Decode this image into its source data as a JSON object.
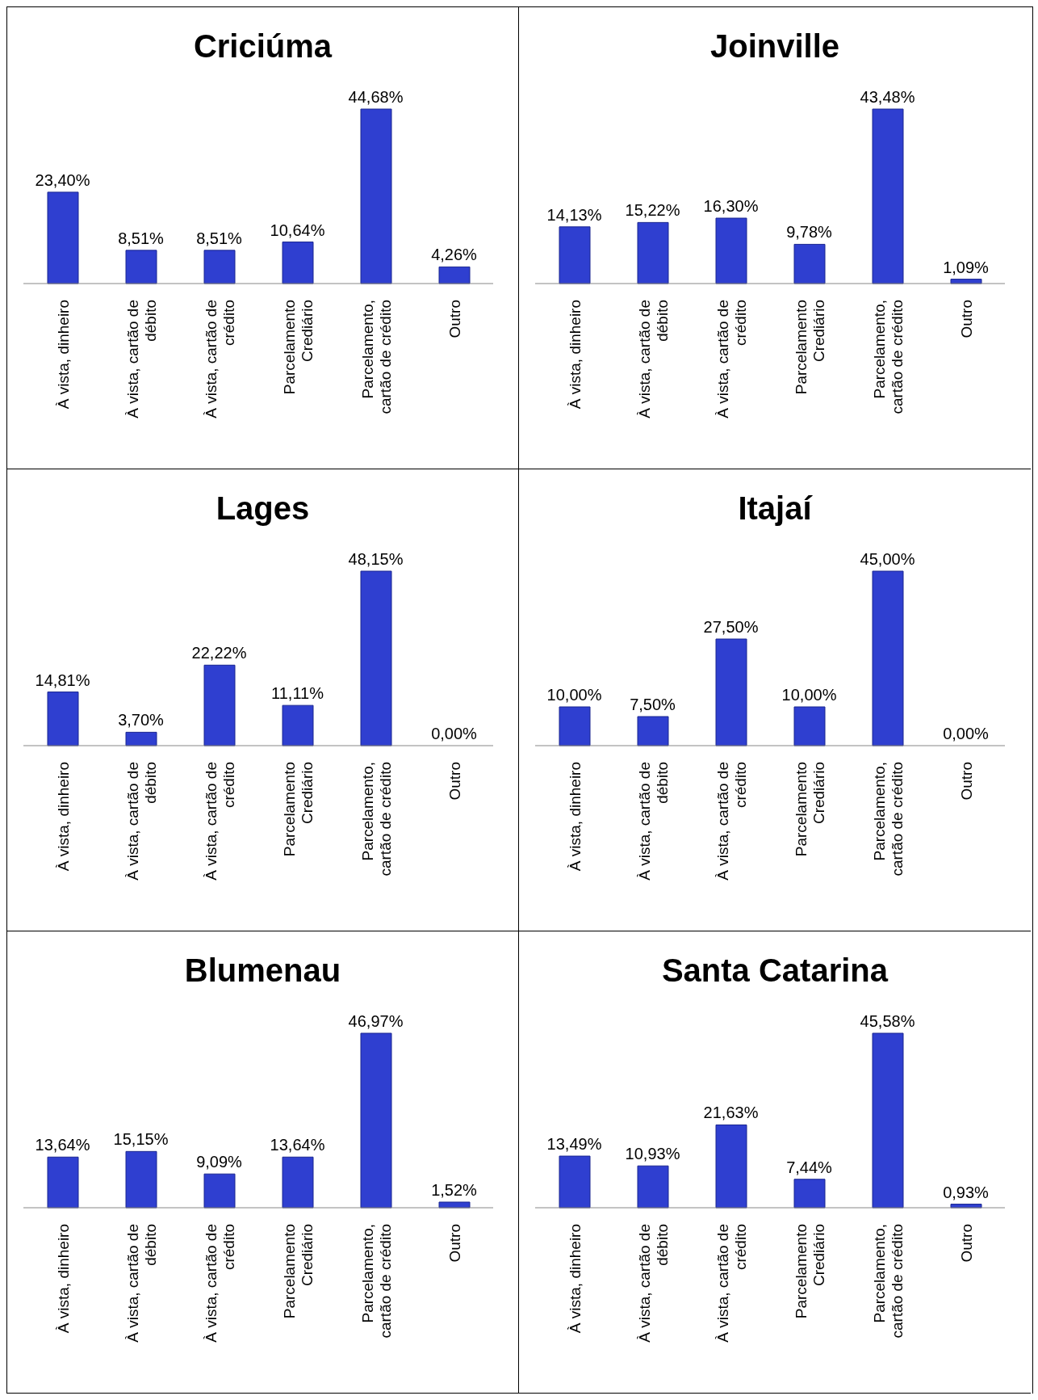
{
  "chart_data": [
    {
      "type": "bar",
      "title": "Criciúma",
      "categories": [
        "À vista, dinheiro",
        "À vista, cartão de débito",
        "À vista, cartão de crédito",
        "Parcelamento Crediário",
        "Parcelamento, cartão de crédito",
        "Outro"
      ],
      "values": [
        23.4,
        8.51,
        8.51,
        10.64,
        44.68,
        4.26
      ],
      "value_labels": [
        "23,40%",
        "8,51%",
        "8,51%",
        "10,64%",
        "44,68%",
        "4,26%"
      ],
      "color": "#2f3fd0"
    },
    {
      "type": "bar",
      "title": "Joinville",
      "categories": [
        "À vista, dinheiro",
        "À vista, cartão de débito",
        "À vista, cartão de crédito",
        "Parcelamento Crediário",
        "Parcelamento, cartão de crédito",
        "Outro"
      ],
      "values": [
        14.13,
        15.22,
        16.3,
        9.78,
        43.48,
        1.09
      ],
      "value_labels": [
        "14,13%",
        "15,22%",
        "16,30%",
        "9,78%",
        "43,48%",
        "1,09%"
      ],
      "color": "#2f3fd0"
    },
    {
      "type": "bar",
      "title": "Lages",
      "categories": [
        "À vista, dinheiro",
        "À vista, cartão de débito",
        "À vista, cartão de crédito",
        "Parcelamento Crediário",
        "Parcelamento, cartão de crédito",
        "Outro"
      ],
      "values": [
        14.81,
        3.7,
        22.22,
        11.11,
        48.15,
        0.0
      ],
      "value_labels": [
        "14,81%",
        "3,70%",
        "22,22%",
        "11,11%",
        "48,15%",
        "0,00%"
      ],
      "color": "#2f3fd0"
    },
    {
      "type": "bar",
      "title": "Itajaí",
      "categories": [
        "À vista, dinheiro",
        "À vista, cartão de débito",
        "À vista, cartão de crédito",
        "Parcelamento Crediário",
        "Parcelamento, cartão de crédito",
        "Outro"
      ],
      "values": [
        10.0,
        7.5,
        27.5,
        10.0,
        45.0,
        0.0
      ],
      "value_labels": [
        "10,00%",
        "7,50%",
        "27,50%",
        "10,00%",
        "45,00%",
        "0,00%"
      ],
      "color": "#2f3fd0"
    },
    {
      "type": "bar",
      "title": "Blumenau",
      "categories": [
        "À vista, dinheiro",
        "À vista, cartão de débito",
        "À vista, cartão de crédito",
        "Parcelamento Crediário",
        "Parcelamento, cartão de crédito",
        "Outro"
      ],
      "values": [
        13.64,
        15.15,
        9.09,
        13.64,
        46.97,
        1.52
      ],
      "value_labels": [
        "13,64%",
        "15,15%",
        "9,09%",
        "13,64%",
        "46,97%",
        "1,52%"
      ],
      "color": "#2f3fd0"
    },
    {
      "type": "bar",
      "title": "Santa Catarina",
      "categories": [
        "À vista, dinheiro",
        "À vista, cartão de débito",
        "À vista, cartão de crédito",
        "Parcelamento Crediário",
        "Parcelamento, cartão de crédito",
        "Outro"
      ],
      "values": [
        13.49,
        10.93,
        21.63,
        7.44,
        45.58,
        0.93
      ],
      "value_labels": [
        "13,49%",
        "10,93%",
        "21,63%",
        "7,44%",
        "45,58%",
        "0,93%"
      ],
      "color": "#2f3fd0"
    }
  ]
}
